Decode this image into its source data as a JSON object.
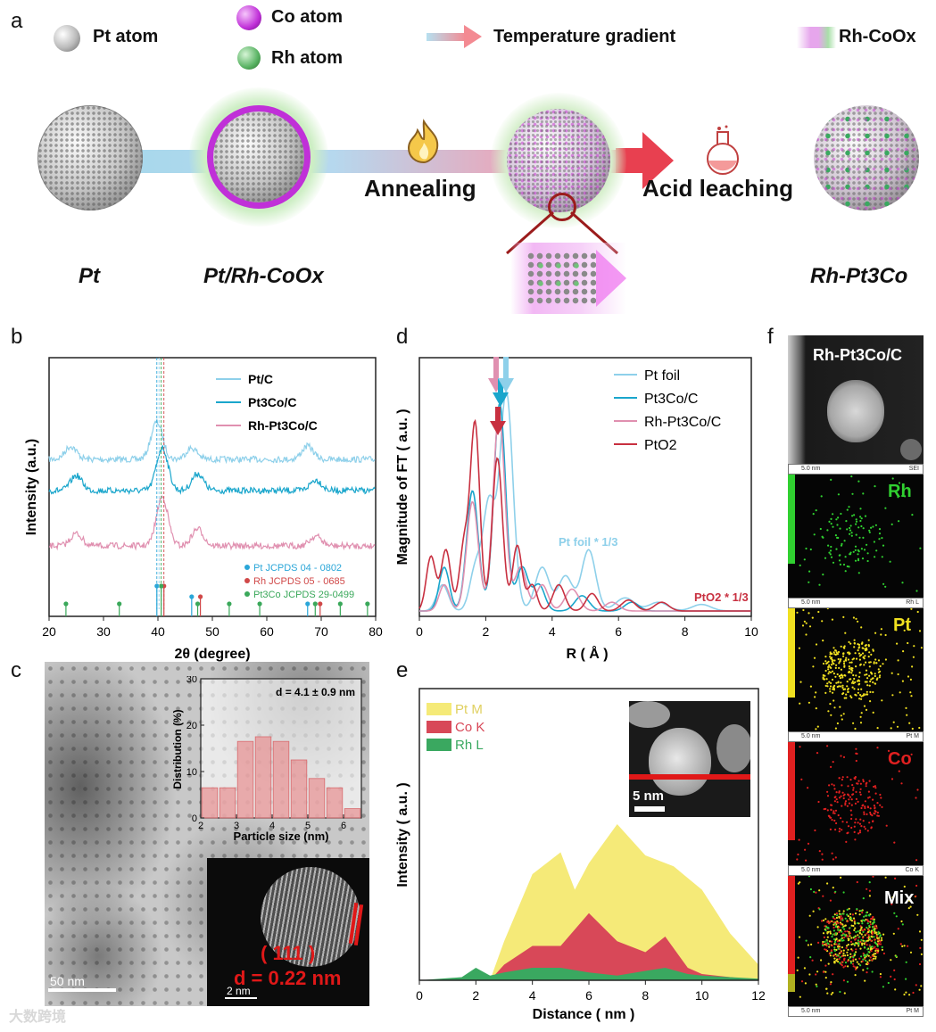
{
  "panel_labels": {
    "a": "a",
    "b": "b",
    "c": "c",
    "d": "d",
    "e": "e",
    "f": "f"
  },
  "panel_a": {
    "legend": {
      "pt_atom": "Pt atom",
      "co_atom": "Co atom",
      "rh_atom": "Rh atom",
      "temp_gradient": "Temperature gradient",
      "rh_coox": "Rh-CoOx"
    },
    "steps": {
      "annealing": "Annealing",
      "acid_leaching": "Acid leaching"
    },
    "labels": {
      "pt": "Pt",
      "pt_rh_coox": "Pt/Rh-CoOx",
      "rh_pt3co": "Rh-Pt3Co"
    },
    "colors": {
      "pt": "#b8b8b8",
      "co": "#c030d8",
      "rh": "#5ab868",
      "gradient_start": "#a8d8ec",
      "gradient_end": "#f07080",
      "arrow": "#e84050"
    }
  },
  "panel_b": {
    "chart_data": {
      "type": "line",
      "xlabel": "2θ (degree)",
      "ylabel": "Intensity (a.u.)",
      "xlim": [
        20,
        80
      ],
      "xticks": [
        20,
        30,
        40,
        50,
        60,
        70,
        80
      ],
      "series": [
        {
          "name": "Pt/C",
          "color": "#8ed0ea",
          "peaks": [
            [
              24,
              0.35
            ],
            [
              39.8,
              1
            ],
            [
              46.2,
              0.3
            ],
            [
              67.5,
              0.35
            ]
          ]
        },
        {
          "name": "Pt3Co/C",
          "color": "#1aa6cc",
          "peaks": [
            [
              25,
              0.35
            ],
            [
              40.8,
              1
            ],
            [
              47.3,
              0.4
            ],
            [
              69,
              0.25
            ]
          ]
        },
        {
          "name": "Rh-Pt3Co/C",
          "color": "#e090b0",
          "peaks": [
            [
              25,
              0.25
            ],
            [
              40.8,
              1
            ],
            [
              47.3,
              0.35
            ],
            [
              69,
              0.2
            ]
          ]
        }
      ],
      "references": [
        {
          "name": "Pt JCPDS 04 - 0802",
          "color": "#2aa6d8",
          "positions": [
            39.8,
            46.2,
            67.5,
            81.3
          ]
        },
        {
          "name": "Rh JCPDS 05 - 0685",
          "color": "#d04848",
          "positions": [
            41.1,
            47.8,
            69.8
          ]
        },
        {
          "name": "Pt3Co JCPDS 29-0499",
          "color": "#3aa85a",
          "positions": [
            23.1,
            32.9,
            40.6,
            47.3,
            53.1,
            58.7,
            68.9,
            73.5,
            78.5
          ]
        }
      ]
    },
    "legend": {
      "pt_c": "Pt/C",
      "pt3co_c": "Pt3Co/C",
      "rh_pt3co_c": "Rh-Pt3Co/C"
    },
    "ref_legend": {
      "pt": "Pt JCPDS 04 - 0802",
      "rh": "Rh JCPDS 05 - 0685",
      "pt3co": "Pt3Co JCPDS 29-0499"
    },
    "xlabel": "2θ (degree)",
    "ylabel": "Intensity (a.u.)"
  },
  "panel_c": {
    "histogram": {
      "chart_data": {
        "type": "bar",
        "xlabel": "Particle size (nm)",
        "ylabel": "Distribution (%)",
        "xlim": [
          2,
          6.5
        ],
        "ylim": [
          0,
          30
        ],
        "categories": [
          2.25,
          2.75,
          3.25,
          3.75,
          4.25,
          4.75,
          5.25,
          5.75,
          6.25
        ],
        "values": [
          6.5,
          6.5,
          16.5,
          17.5,
          16.5,
          12.5,
          8.5,
          6.5,
          2
        ],
        "annotation": "d = 4.1 ± 0.9 nm"
      },
      "xticks": [
        "2",
        "3",
        "4",
        "5",
        "6"
      ],
      "yticks": [
        "0",
        "10",
        "20",
        "30"
      ]
    },
    "scale_main": "50 nm",
    "scale_inset": "2 nm",
    "plane": "( 111 )",
    "d_spacing": "d = 0.22 nm"
  },
  "panel_d": {
    "chart_data": {
      "type": "line",
      "xlabel": "R ( Å )",
      "ylabel": "Magnitude of FT ( a.u. )",
      "xlim": [
        0,
        10
      ],
      "xticks": [
        0,
        2,
        4,
        6,
        8,
        10
      ],
      "series": [
        {
          "name": "Pt foil",
          "color": "#8ed0ea"
        },
        {
          "name": "Pt3Co/C",
          "color": "#1aa6cc"
        },
        {
          "name": "Rh-Pt3Co/C",
          "color": "#e090b0"
        },
        {
          "name": "PtO2",
          "color": "#c83040"
        }
      ],
      "annotations": [
        "Pt foil * 1/3",
        "PtO2 * 1/3"
      ]
    },
    "legend": {
      "pt_foil": "Pt foil",
      "pt3co": "Pt3Co/C",
      "rh_pt3co": "Rh-Pt3Co/C",
      "pto2": "PtO2"
    },
    "annot_ptfoil": "Pt foil * 1/3",
    "annot_pto2": "PtO2 * 1/3"
  },
  "panel_e": {
    "chart_data": {
      "type": "area",
      "xlabel": "Distance ( nm )",
      "ylabel": "Intensity ( a.u. )",
      "xlim": [
        0,
        12
      ],
      "xticks": [
        0,
        2,
        4,
        6,
        8,
        10,
        12
      ],
      "series": [
        {
          "name": "Pt M",
          "color": "#f5ea78",
          "x": [
            0,
            2.5,
            3,
            4,
            5,
            5.5,
            6,
            7,
            8,
            9,
            10,
            11,
            12
          ],
          "y": [
            0,
            0,
            0.25,
            0.68,
            0.82,
            0.58,
            0.75,
            1,
            0.8,
            0.73,
            0.58,
            0.3,
            0.1
          ]
        },
        {
          "name": "Co K",
          "color": "#d84858",
          "x": [
            0,
            2.5,
            3,
            4,
            5,
            6,
            7,
            8,
            8.7,
            9.5,
            10,
            12
          ],
          "y": [
            0,
            0,
            0.1,
            0.22,
            0.22,
            0.43,
            0.25,
            0.18,
            0.28,
            0.08,
            0.04,
            0
          ]
        },
        {
          "name": "Rh L",
          "color": "#3aa860",
          "x": [
            0,
            1.5,
            2,
            2.5,
            3,
            4,
            5,
            6,
            7,
            8,
            8.7,
            9.5,
            10,
            11,
            12
          ],
          "y": [
            0,
            0.02,
            0.08,
            0.03,
            0.05,
            0.08,
            0.08,
            0.05,
            0.03,
            0.06,
            0.08,
            0.04,
            0.03,
            0.02,
            0.01
          ]
        }
      ]
    },
    "legend": {
      "pt": "Pt M",
      "co": "Co K",
      "rh": "Rh L"
    },
    "scale": "5 nm"
  },
  "panel_f": {
    "title": "Rh-Pt3Co/C",
    "maps": [
      {
        "label": "Rh",
        "color": "#30d030",
        "footer_left": "5.0 nm",
        "footer_right": "Rh L"
      },
      {
        "label": "Pt",
        "color": "#f0e020",
        "footer_left": "5.0 nm",
        "footer_right": "Pt M"
      },
      {
        "label": "Co",
        "color": "#e02020",
        "footer_left": "5.0 nm",
        "footer_right": "Co K"
      },
      {
        "label": "Mix",
        "color": "#ffffff",
        "footer_left": "5.0 nm",
        "footer_right": "Pt M"
      }
    ],
    "sei_footer_left": "5.0 nm",
    "sei_footer_right": "SEI"
  },
  "watermark": "大数跨境"
}
